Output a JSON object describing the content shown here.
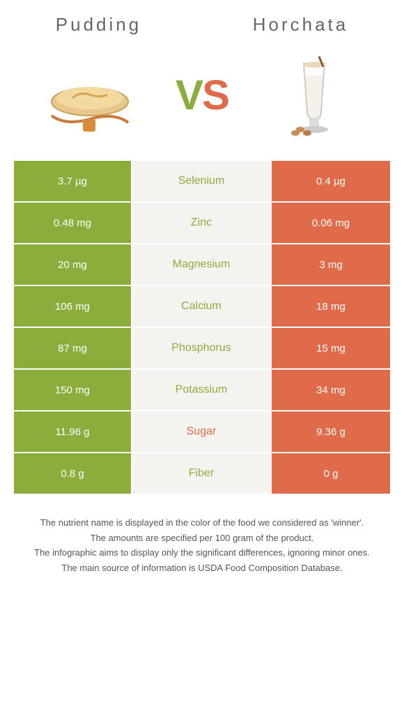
{
  "header": {
    "left_title": "Pudding",
    "right_title": "Horchata"
  },
  "vs": {
    "v": "V",
    "s": "S"
  },
  "colors": {
    "green": "#8aad3c",
    "orange": "#e06b4a",
    "mid_bg": "#f5f3ef",
    "header_text": "#666666",
    "footer_text": "#555555"
  },
  "table": {
    "rows": [
      {
        "left": "3.7 µg",
        "mid": "Selenium",
        "right": "0.4 µg",
        "winner": "left"
      },
      {
        "left": "0.48 mg",
        "mid": "Zinc",
        "right": "0.06 mg",
        "winner": "left"
      },
      {
        "left": "20 mg",
        "mid": "Magnesium",
        "right": "3 mg",
        "winner": "left"
      },
      {
        "left": "106 mg",
        "mid": "Calcium",
        "right": "18 mg",
        "winner": "left"
      },
      {
        "left": "87 mg",
        "mid": "Phosphorus",
        "right": "15 mg",
        "winner": "left"
      },
      {
        "left": "150 mg",
        "mid": "Potassium",
        "right": "34 mg",
        "winner": "left"
      },
      {
        "left": "11.96 g",
        "mid": "Sugar",
        "right": "9.36 g",
        "winner": "right"
      },
      {
        "left": "0.8 g",
        "mid": "Fiber",
        "right": "0 g",
        "winner": "left"
      }
    ]
  },
  "footer": {
    "line1": "The nutrient name is displayed in the color of the food we considered as 'winner'.",
    "line2": "The amounts are specified per 100 gram of the product.",
    "line3": "The infographic aims to display only the significant differences, ignoring minor ones.",
    "line4": "The main source of information is USDA Food Composition Database."
  }
}
